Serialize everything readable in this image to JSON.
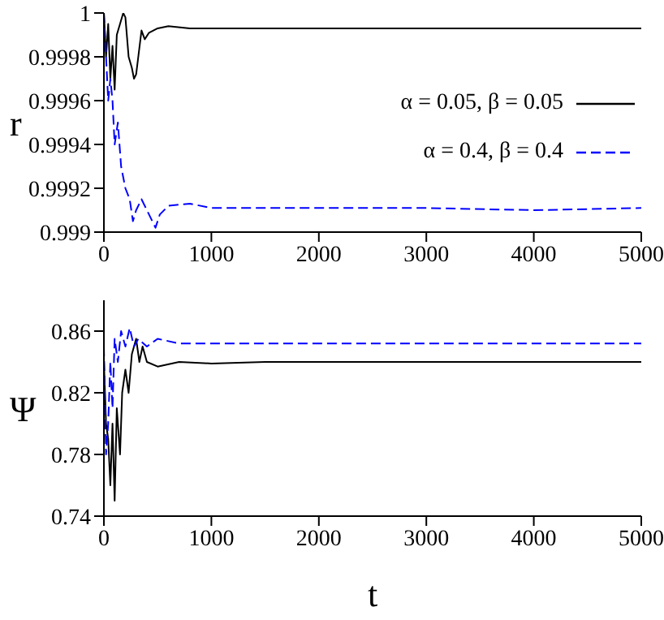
{
  "chart_data": [
    {
      "type": "line",
      "ylabel": "r",
      "xlim": [
        0,
        5000
      ],
      "xticks": [
        0,
        1000,
        2000,
        3000,
        4000,
        5000
      ],
      "ylim": [
        0.999,
        1
      ],
      "yticks": [
        0.999,
        0.9992,
        0.9994,
        0.9996,
        0.9998,
        1
      ],
      "legend": "right",
      "marker": "none",
      "series": [
        {
          "name": "α = 0.05, β = 0.05",
          "color": "#000000",
          "line_style": "solid",
          "x": [
            0,
            20,
            40,
            60,
            80,
            100,
            120,
            150,
            180,
            200,
            230,
            260,
            280,
            300,
            320,
            350,
            380,
            420,
            500,
            600,
            800,
            1000,
            1500,
            5000
          ],
          "values": [
            1,
            0.9998,
            0.99995,
            0.9997,
            0.99985,
            0.99965,
            0.9999,
            0.99995,
            1,
            0.99998,
            0.9998,
            0.99975,
            0.9997,
            0.99972,
            0.9998,
            0.99992,
            0.99988,
            0.99991,
            0.99993,
            0.99994,
            0.99993,
            0.99993,
            0.99993,
            0.99993
          ]
        },
        {
          "name": "α = 0.4, β = 0.4",
          "color": "#0000ff",
          "line_style": "dashed",
          "x": [
            0,
            20,
            40,
            60,
            80,
            100,
            130,
            160,
            200,
            240,
            270,
            300,
            350,
            400,
            450,
            480,
            520,
            600,
            800,
            1000,
            2000,
            3000,
            4000,
            5000
          ],
          "values": [
            1,
            0.9998,
            0.9996,
            0.9997,
            0.9996,
            0.9994,
            0.9995,
            0.9993,
            0.9992,
            0.99915,
            0.99905,
            0.9991,
            0.99915,
            0.9991,
            0.99905,
            0.99902,
            0.99908,
            0.99912,
            0.99913,
            0.99911,
            0.99911,
            0.99911,
            0.9991,
            0.99911
          ]
        }
      ]
    },
    {
      "type": "line",
      "ylabel": "Ψ",
      "xlabel": "t",
      "xlim": [
        0,
        5000
      ],
      "xticks": [
        0,
        1000,
        2000,
        3000,
        4000,
        5000
      ],
      "ylim": [
        0.74,
        0.88
      ],
      "yticks": [
        0.74,
        0.78,
        0.82,
        0.86
      ],
      "legend": false,
      "marker": "none",
      "series": [
        {
          "color": "#000000",
          "line_style": "solid",
          "x": [
            0,
            20,
            40,
            60,
            80,
            100,
            120,
            150,
            170,
            200,
            230,
            260,
            300,
            330,
            360,
            400,
            500,
            700,
            1000,
            1500,
            5000
          ],
          "values": [
            0.84,
            0.8,
            0.79,
            0.76,
            0.8,
            0.75,
            0.81,
            0.78,
            0.82,
            0.835,
            0.82,
            0.845,
            0.855,
            0.84,
            0.85,
            0.84,
            0.837,
            0.84,
            0.839,
            0.84,
            0.84
          ]
        },
        {
          "color": "#0000ff",
          "line_style": "dashed",
          "x": [
            0,
            20,
            40,
            60,
            80,
            100,
            130,
            160,
            200,
            240,
            280,
            320,
            400,
            500,
            700,
            1000,
            3000,
            5000
          ],
          "values": [
            0.85,
            0.78,
            0.8,
            0.84,
            0.81,
            0.855,
            0.84,
            0.86,
            0.85,
            0.862,
            0.85,
            0.855,
            0.85,
            0.855,
            0.852,
            0.852,
            0.852,
            0.852
          ]
        }
      ]
    }
  ]
}
